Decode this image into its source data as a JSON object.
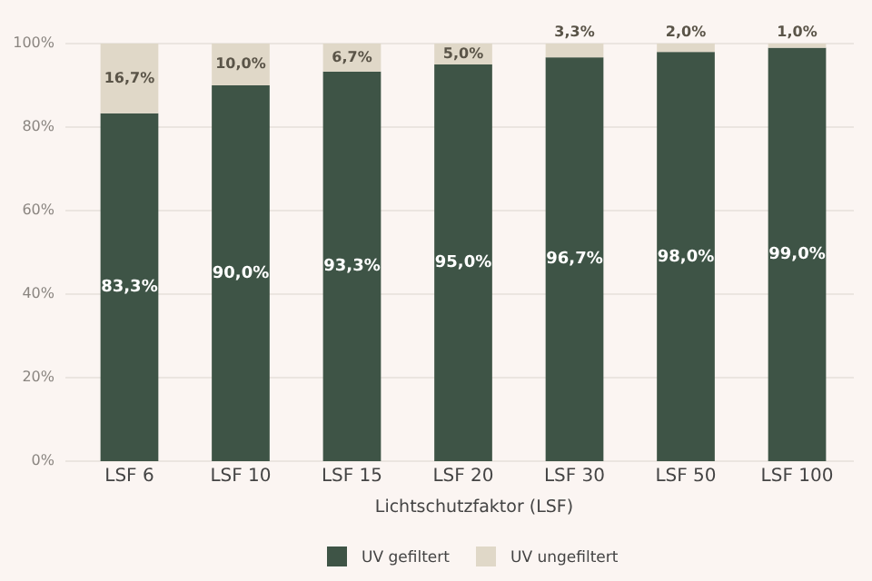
{
  "chart_data": {
    "type": "bar",
    "stacked": true,
    "xlabel": "Lichtschutzfaktor (LSF)",
    "categories": [
      "LSF 6",
      "LSF 10",
      "LSF 15",
      "LSF 20",
      "LSF 30",
      "LSF 50",
      "LSF 100"
    ],
    "series": [
      {
        "name": "UV gefiltert",
        "color": "#3e5446",
        "values": [
          83.3,
          90.0,
          93.3,
          95.0,
          96.7,
          98.0,
          99.0
        ],
        "value_labels": [
          "83,3%",
          "90,0%",
          "93,3%",
          "95,0%",
          "96,7%",
          "98,0%",
          "99,0%"
        ]
      },
      {
        "name": "UV ungefiltert",
        "color": "#e0d8c8",
        "values": [
          16.7,
          10.0,
          6.7,
          5.0,
          3.3,
          2.0,
          1.0
        ],
        "value_labels": [
          "16,7%",
          "10,0%",
          "6,7%",
          "5,0%",
          "3,3%",
          "2,0%",
          "1,0%"
        ]
      }
    ],
    "ylim": [
      0,
      100
    ],
    "yticks": [
      {
        "value": 0,
        "label": "0%"
      },
      {
        "value": 20,
        "label": "20%"
      },
      {
        "value": 40,
        "label": "40%"
      },
      {
        "value": 60,
        "label": "60%"
      },
      {
        "value": 80,
        "label": "80%"
      },
      {
        "value": 100,
        "label": "100%"
      }
    ],
    "grid": "y",
    "legend": "bottom"
  }
}
